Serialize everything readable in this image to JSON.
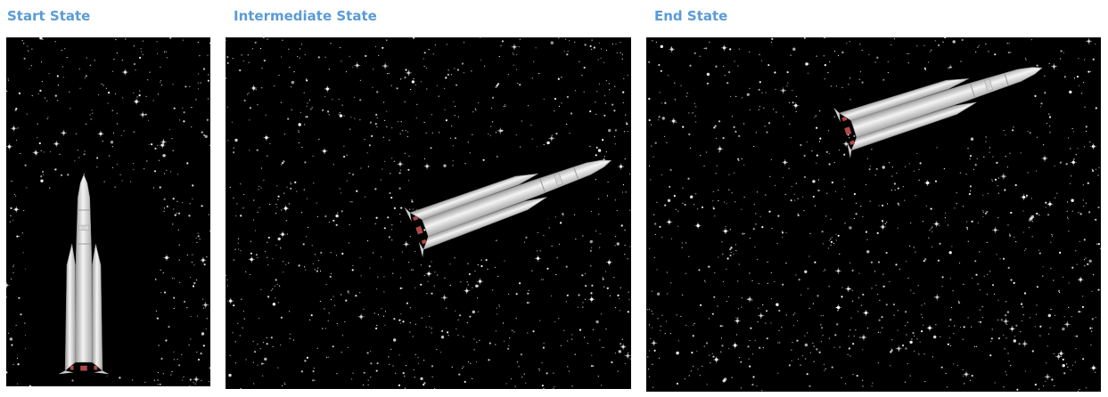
{
  "panels": {
    "start": {
      "title": "Start State",
      "rocket_rotation_deg": 0
    },
    "intermediate": {
      "title": "Intermediate State",
      "rocket_rotation_deg": 70
    },
    "end": {
      "title": "End State",
      "rocket_rotation_deg": 72
    }
  },
  "colors": {
    "title": "#5b9bd5",
    "space": "#000000",
    "star": "#ffffff",
    "rocket_body": "#e8e8e8",
    "rocket_shade": "#a9a9a9",
    "rocket_trim": "#b04a4a"
  },
  "icons": {
    "rocket": "rocket-icon",
    "starfield": "starfield-background"
  }
}
